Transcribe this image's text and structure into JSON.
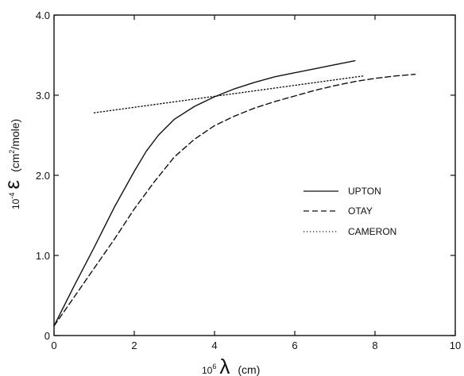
{
  "chart_data": {
    "type": "line",
    "xlim": [
      0,
      10
    ],
    "ylim": [
      0,
      4.0
    ],
    "x_ticks": [
      0,
      2,
      4,
      6,
      8,
      10
    ],
    "x_tick_labels": [
      "0",
      "2",
      "4",
      "6",
      "8",
      "10"
    ],
    "y_ticks": [
      0,
      1.0,
      2.0,
      3.0,
      4.0
    ],
    "y_tick_labels": [
      "0",
      "1.0",
      "2.0",
      "3.0",
      "4.0"
    ],
    "xlabel": {
      "prefix": "10",
      "exponent": "6",
      "symbol": "λ",
      "unit": "(cm)"
    },
    "ylabel": {
      "prefix": "10",
      "exponent": "-4",
      "symbol": "ε",
      "unit": "(cm",
      "unit_exp": "2",
      "unit_rest": "/mole)"
    },
    "grid": false,
    "legend_position": "right",
    "series": [
      {
        "name": "UPTON",
        "style": "solid",
        "x": [
          0,
          0.5,
          1.0,
          1.5,
          2.0,
          2.3,
          2.6,
          3.0,
          3.5,
          4.0,
          4.5,
          5.0,
          5.5,
          6.0,
          6.5,
          7.0,
          7.5
        ],
        "y": [
          0.12,
          0.62,
          1.1,
          1.6,
          2.05,
          2.3,
          2.5,
          2.7,
          2.86,
          2.98,
          3.08,
          3.16,
          3.23,
          3.28,
          3.33,
          3.38,
          3.43
        ]
      },
      {
        "name": "OTAY",
        "style": "dashed",
        "x": [
          0,
          0.5,
          1.0,
          1.5,
          2.0,
          2.5,
          3.0,
          3.5,
          4.0,
          4.5,
          5.0,
          5.5,
          6.0,
          6.5,
          7.0,
          7.5,
          8.0,
          8.5,
          9.0
        ],
        "y": [
          0.12,
          0.48,
          0.84,
          1.2,
          1.58,
          1.92,
          2.23,
          2.45,
          2.62,
          2.74,
          2.84,
          2.92,
          2.99,
          3.06,
          3.12,
          3.17,
          3.21,
          3.24,
          3.26
        ]
      },
      {
        "name": "CAMERON",
        "style": "dotted",
        "x": [
          1.0,
          7.7
        ],
        "y": [
          2.78,
          3.24
        ]
      }
    ]
  }
}
